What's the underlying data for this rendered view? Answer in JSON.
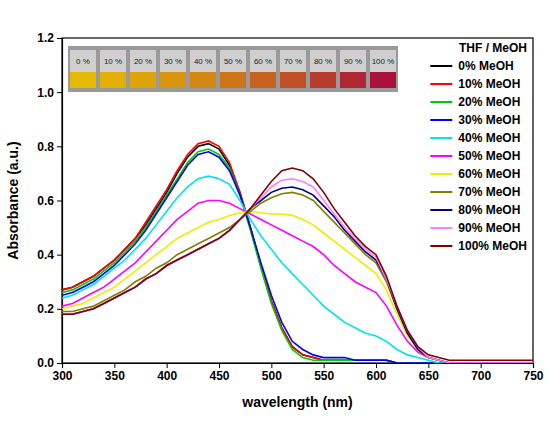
{
  "chart_data": {
    "type": "line",
    "x_label": "wavelength (nm)",
    "y_label": "Absorbance (a.u.)",
    "legend_title": "THF / MeOH",
    "legend": "upper right",
    "annotations": [
      "0 %",
      "10 %",
      "20 %",
      "30 %",
      "40 %",
      "50 %",
      "60 %",
      "70 %",
      "80 %",
      "90 %",
      "100 %"
    ],
    "xlim": [
      300,
      750
    ],
    "xticks": [
      300,
      350,
      400,
      450,
      500,
      550,
      600,
      650,
      700,
      750
    ],
    "ylim": [
      0,
      1.2
    ],
    "yticks": [
      {
        "value": 0,
        "label": "0.0"
      },
      0.2,
      0.4,
      0.6,
      0.8,
      {
        "value": 1,
        "label": "1.0"
      },
      1.2
    ],
    "x": [
      300,
      310,
      320,
      330,
      340,
      350,
      360,
      370,
      380,
      390,
      400,
      410,
      420,
      430,
      440,
      450,
      460,
      470,
      480,
      490,
      500,
      510,
      520,
      530,
      540,
      550,
      560,
      570,
      580,
      590,
      600,
      610,
      620,
      630,
      640,
      650,
      660,
      670,
      680,
      690,
      700,
      750
    ],
    "series": [
      {
        "name": "0% MeOH",
        "color": "#000000",
        "values": [
          0.27,
          0.28,
          0.3,
          0.32,
          0.35,
          0.38,
          0.42,
          0.46,
          0.51,
          0.57,
          0.63,
          0.7,
          0.76,
          0.8,
          0.81,
          0.79,
          0.73,
          0.63,
          0.5,
          0.36,
          0.23,
          0.13,
          0.06,
          0.03,
          0.02,
          0.01,
          0.01,
          0.01,
          0.01,
          0.01,
          0.01,
          0.01,
          0,
          0,
          0,
          0,
          0,
          0,
          0,
          0,
          0,
          0
        ]
      },
      {
        "name": "10% MeOH",
        "color": "#ff0000",
        "values": [
          0.27,
          0.28,
          0.3,
          0.32,
          0.35,
          0.38,
          0.42,
          0.46,
          0.52,
          0.58,
          0.64,
          0.71,
          0.77,
          0.81,
          0.82,
          0.8,
          0.74,
          0.63,
          0.5,
          0.36,
          0.23,
          0.13,
          0.06,
          0.03,
          0.02,
          0.01,
          0.01,
          0.01,
          0.01,
          0.01,
          0.01,
          0.01,
          0,
          0,
          0,
          0,
          0,
          0,
          0,
          0,
          0,
          0
        ]
      },
      {
        "name": "20% MeOH",
        "color": "#00cc00",
        "values": [
          0.26,
          0.27,
          0.29,
          0.31,
          0.34,
          0.37,
          0.41,
          0.45,
          0.5,
          0.56,
          0.62,
          0.68,
          0.74,
          0.78,
          0.79,
          0.77,
          0.72,
          0.62,
          0.49,
          0.35,
          0.22,
          0.12,
          0.05,
          0.02,
          0.01,
          0.01,
          0.01,
          0.01,
          0.01,
          0.01,
          0.01,
          0.01,
          0,
          0,
          0,
          0,
          0,
          0,
          0,
          0,
          0,
          0
        ]
      },
      {
        "name": "30% MeOH",
        "color": "#0000ff",
        "values": [
          0.25,
          0.26,
          0.28,
          0.3,
          0.33,
          0.36,
          0.4,
          0.44,
          0.49,
          0.55,
          0.61,
          0.67,
          0.73,
          0.77,
          0.78,
          0.76,
          0.71,
          0.62,
          0.5,
          0.37,
          0.25,
          0.15,
          0.08,
          0.05,
          0.03,
          0.02,
          0.02,
          0.02,
          0.01,
          0.01,
          0.01,
          0.01,
          0,
          0,
          0,
          0,
          0,
          0,
          0,
          0,
          0,
          0
        ]
      },
      {
        "name": "40% MeOH",
        "color": "#00e5e5",
        "values": [
          0.24,
          0.25,
          0.27,
          0.29,
          0.32,
          0.35,
          0.38,
          0.42,
          0.46,
          0.51,
          0.56,
          0.61,
          0.65,
          0.68,
          0.69,
          0.68,
          0.66,
          0.6,
          0.53,
          0.47,
          0.42,
          0.37,
          0.33,
          0.29,
          0.25,
          0.21,
          0.18,
          0.15,
          0.13,
          0.11,
          0.1,
          0.08,
          0.05,
          0.03,
          0.02,
          0.01,
          0,
          0,
          0,
          0,
          0,
          0
        ]
      },
      {
        "name": "50% MeOH",
        "color": "#ff00ff",
        "values": [
          0.21,
          0.22,
          0.24,
          0.26,
          0.28,
          0.31,
          0.34,
          0.37,
          0.41,
          0.45,
          0.49,
          0.53,
          0.56,
          0.59,
          0.6,
          0.6,
          0.59,
          0.57,
          0.55,
          0.53,
          0.51,
          0.49,
          0.47,
          0.45,
          0.43,
          0.4,
          0.36,
          0.33,
          0.3,
          0.28,
          0.26,
          0.21,
          0.14,
          0.08,
          0.04,
          0.02,
          0.01,
          0,
          0,
          0,
          0,
          0
        ]
      },
      {
        "name": "60% MeOH",
        "color": "#eeee00",
        "values": [
          0.2,
          0.21,
          0.22,
          0.24,
          0.26,
          0.28,
          0.31,
          0.34,
          0.37,
          0.4,
          0.43,
          0.46,
          0.48,
          0.5,
          0.52,
          0.53,
          0.545,
          0.555,
          0.56,
          0.555,
          0.55,
          0.55,
          0.545,
          0.53,
          0.51,
          0.48,
          0.45,
          0.42,
          0.39,
          0.36,
          0.33,
          0.27,
          0.18,
          0.1,
          0.05,
          0.02,
          0.01,
          0,
          0,
          0,
          0,
          0
        ]
      },
      {
        "name": "70% MeOH",
        "color": "#808000",
        "values": [
          0.19,
          0.19,
          0.2,
          0.21,
          0.23,
          0.25,
          0.27,
          0.3,
          0.32,
          0.35,
          0.37,
          0.4,
          0.42,
          0.44,
          0.46,
          0.48,
          0.5,
          0.53,
          0.56,
          0.59,
          0.61,
          0.625,
          0.63,
          0.62,
          0.6,
          0.56,
          0.52,
          0.48,
          0.44,
          0.4,
          0.37,
          0.3,
          0.2,
          0.11,
          0.05,
          0.02,
          0.01,
          0,
          0,
          0,
          0,
          0
        ]
      },
      {
        "name": "80% MeOH",
        "color": "#000080",
        "values": [
          0.18,
          0.18,
          0.19,
          0.2,
          0.22,
          0.24,
          0.26,
          0.28,
          0.31,
          0.33,
          0.36,
          0.38,
          0.4,
          0.42,
          0.44,
          0.46,
          0.49,
          0.53,
          0.57,
          0.6,
          0.63,
          0.645,
          0.65,
          0.64,
          0.62,
          0.58,
          0.54,
          0.49,
          0.45,
          0.41,
          0.38,
          0.31,
          0.2,
          0.11,
          0.05,
          0.02,
          0.01,
          0,
          0,
          0,
          0,
          0
        ]
      },
      {
        "name": "90% MeOH",
        "color": "#ff80ff",
        "values": [
          0.18,
          0.18,
          0.19,
          0.2,
          0.22,
          0.24,
          0.26,
          0.28,
          0.31,
          0.33,
          0.36,
          0.38,
          0.4,
          0.42,
          0.44,
          0.46,
          0.49,
          0.53,
          0.57,
          0.61,
          0.65,
          0.675,
          0.68,
          0.67,
          0.65,
          0.6,
          0.55,
          0.5,
          0.46,
          0.42,
          0.39,
          0.31,
          0.21,
          0.12,
          0.06,
          0.02,
          0.01,
          0,
          0,
          0,
          0,
          0
        ]
      },
      {
        "name": "100% MeOH",
        "color": "#800000",
        "values": [
          0.18,
          0.18,
          0.19,
          0.2,
          0.22,
          0.24,
          0.26,
          0.28,
          0.31,
          0.33,
          0.36,
          0.38,
          0.4,
          0.42,
          0.44,
          0.46,
          0.49,
          0.53,
          0.57,
          0.62,
          0.67,
          0.71,
          0.72,
          0.71,
          0.68,
          0.63,
          0.57,
          0.52,
          0.47,
          0.43,
          0.4,
          0.32,
          0.21,
          0.12,
          0.06,
          0.03,
          0.02,
          0.01,
          0.01,
          0.01,
          0.01,
          0.01
        ]
      }
    ]
  }
}
